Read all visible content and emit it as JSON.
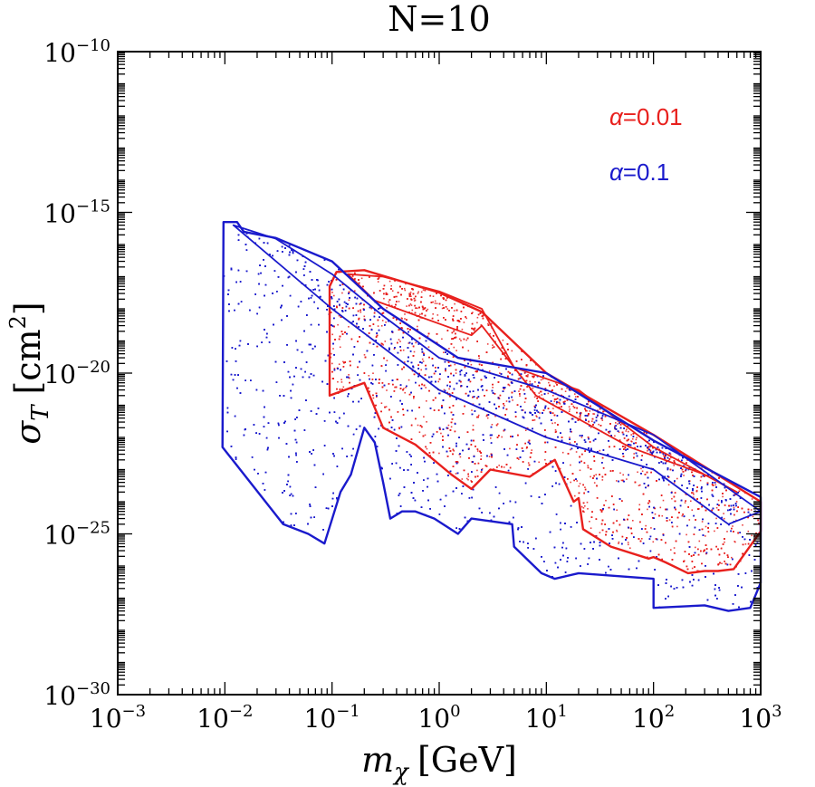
{
  "chart_data": {
    "type": "scatter",
    "title": "N=10",
    "xlabel": {
      "main": "m",
      "sub": "χ",
      "unit": "[GeV]"
    },
    "ylabel": {
      "main": "σ",
      "sub": "T",
      "unit": "[cm",
      "sup": "2",
      "close": "]"
    },
    "x_scale": "log",
    "y_scale": "log",
    "xlim": [
      0.001,
      1000
    ],
    "ylim": [
      1e-30,
      1e-10
    ],
    "x_ticks": [
      {
        "base": "10",
        "exp": "−3",
        "value": 0.001
      },
      {
        "base": "10",
        "exp": "−2",
        "value": 0.01
      },
      {
        "base": "10",
        "exp": "−1",
        "value": 0.1
      },
      {
        "base": "10",
        "exp": "0",
        "value": 1
      },
      {
        "base": "10",
        "exp": "1",
        "value": 10
      },
      {
        "base": "10",
        "exp": "2",
        "value": 100
      },
      {
        "base": "10",
        "exp": "3",
        "value": 1000
      }
    ],
    "y_ticks": [
      {
        "base": "10",
        "exp": "−30",
        "value": 1e-30
      },
      {
        "base": "10",
        "exp": "−25",
        "value": 1e-25
      },
      {
        "base": "10",
        "exp": "−20",
        "value": 1e-20
      },
      {
        "base": "10",
        "exp": "−15",
        "value": 1e-15
      },
      {
        "base": "10",
        "exp": "−10",
        "value": 1e-10
      }
    ],
    "grid": false,
    "legend": {
      "placement": "top-right",
      "entries": [
        {
          "symbol": "α",
          "text": "=0.01",
          "color": "#e8201d"
        },
        {
          "symbol": "α",
          "text": "=0.1",
          "color": "#1a1acc"
        }
      ]
    },
    "series": [
      {
        "label_ref": "α=0.01",
        "color": "#e8201d",
        "envelope_outer": [
          [
            0.095,
            5e-18
          ],
          [
            0.11,
            1.4e-17
          ],
          [
            0.2,
            1.6e-17
          ],
          [
            1.0,
            3.2e-18
          ],
          [
            2.5,
            8e-19
          ],
          [
            10,
            1e-20
          ],
          [
            100,
            1.2e-22
          ],
          [
            1000,
            1e-24
          ],
          [
            1000,
            1.2e-25
          ],
          [
            560,
            8e-27
          ],
          [
            400,
            7e-27
          ],
          [
            300,
            7e-27
          ],
          [
            210,
            6e-27
          ],
          [
            130,
            1.3e-26
          ],
          [
            100,
            1.9e-26
          ],
          [
            90,
            1.7e-26
          ],
          [
            40,
            4e-26
          ],
          [
            22,
            1.4e-25
          ],
          [
            20,
            1.3e-24
          ],
          [
            18,
            1e-24
          ],
          [
            12,
            2e-23
          ],
          [
            7,
            6e-24
          ],
          [
            3,
            1e-23
          ],
          [
            2,
            2.5e-24
          ],
          [
            1.3,
            7e-24
          ],
          [
            0.6,
            6e-23
          ],
          [
            0.3,
            2e-22
          ],
          [
            0.2,
            5e-21
          ],
          [
            0.095,
            2e-21
          ],
          [
            0.095,
            5e-18
          ]
        ],
        "envelope_inner": [
          [
            0.14,
            1.2e-17
          ],
          [
            0.3,
            1e-17
          ],
          [
            1.0,
            3.5e-18
          ],
          [
            2.5,
            1e-18
          ],
          [
            5,
            1.5e-20
          ],
          [
            20,
            3e-21
          ],
          [
            100,
            5e-23
          ],
          [
            600,
            2e-24
          ],
          [
            300,
            7e-24
          ],
          [
            60,
            5e-23
          ],
          [
            8,
            2e-21
          ],
          [
            2.5,
            3e-19
          ],
          [
            2.0,
            1.5e-19
          ],
          [
            0.25,
            1.8e-18
          ],
          [
            0.14,
            1.2e-17
          ]
        ],
        "points": 4200
      },
      {
        "label_ref": "α=0.1",
        "color": "#1a1acc",
        "envelope_outer": [
          [
            0.0095,
            5e-23
          ],
          [
            0.0097,
            5e-16
          ],
          [
            0.013,
            5e-16
          ],
          [
            0.015,
            2.5e-16
          ],
          [
            0.03,
            1.6e-16
          ],
          [
            0.1,
            3e-17
          ],
          [
            0.3,
            1e-18
          ],
          [
            1.5,
            3e-20
          ],
          [
            10,
            1e-20
          ],
          [
            100,
            8e-23
          ],
          [
            1000,
            1.4e-24
          ],
          [
            1000,
            3e-27
          ],
          [
            800,
            5e-28
          ],
          [
            500,
            4e-28
          ],
          [
            300,
            6e-28
          ],
          [
            100,
            5e-28
          ],
          [
            100,
            4e-27
          ],
          [
            20,
            6e-27
          ],
          [
            12,
            4e-27
          ],
          [
            9,
            6e-27
          ],
          [
            5,
            4e-26
          ],
          [
            4.8,
            2e-25
          ],
          [
            2,
            3e-25
          ],
          [
            1.5,
            1e-25
          ],
          [
            0.9,
            3e-25
          ],
          [
            0.6,
            5e-25
          ],
          [
            0.45,
            5e-25
          ],
          [
            0.35,
            3e-25
          ],
          [
            0.3,
            4e-24
          ],
          [
            0.25,
            7e-23
          ],
          [
            0.2,
            2e-22
          ],
          [
            0.15,
            7e-24
          ],
          [
            0.12,
            2e-24
          ],
          [
            0.085,
            5e-26
          ],
          [
            0.06,
            1e-25
          ],
          [
            0.035,
            2e-25
          ],
          [
            0.0095,
            5e-23
          ]
        ],
        "envelope_inner": [
          [
            0.012,
            4e-16
          ],
          [
            0.03,
            1.5e-16
          ],
          [
            0.1,
            1.2e-17
          ],
          [
            0.3,
            6e-19
          ],
          [
            1.0,
            3e-20
          ],
          [
            10,
            3e-21
          ],
          [
            100,
            1.2e-22
          ],
          [
            1000,
            5e-25
          ],
          [
            500,
            2e-25
          ],
          [
            100,
            1e-23
          ],
          [
            10,
            1e-22
          ],
          [
            1.0,
            3e-21
          ],
          [
            0.1,
            1e-18
          ],
          [
            0.012,
            4e-16
          ]
        ],
        "points": 6200
      }
    ]
  }
}
